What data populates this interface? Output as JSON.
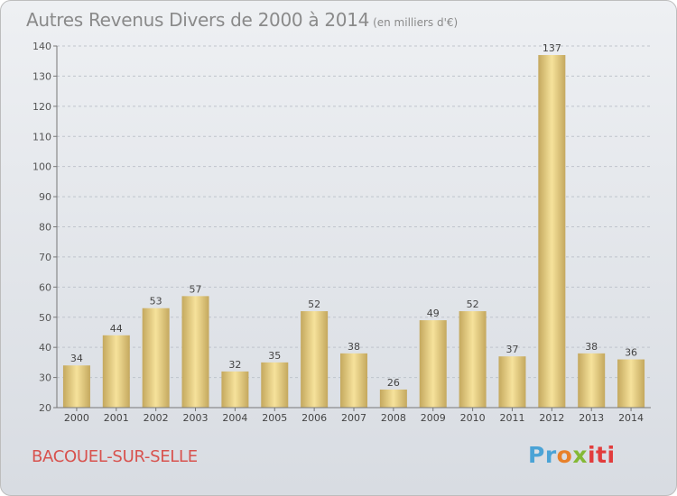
{
  "title": "Autres Revenus Divers de 2000 à 2014",
  "subtitle": "(en milliers d'€)",
  "commune": "BACOUEL-SUR-SELLE",
  "logo": {
    "part1": "Pr",
    "part2": "o",
    "part3": "x",
    "part4": "iti"
  },
  "colors": {
    "bar_light": "#f6e29b",
    "bar_dark": "#c4a85e",
    "title": "#8a8a8a",
    "commune": "#d8524e",
    "grid": "#bfc4cc"
  },
  "chart_data": {
    "type": "bar",
    "title": "Autres Revenus Divers de 2000 à 2014",
    "subtitle": "(en milliers d'€)",
    "categories": [
      "2000",
      "2001",
      "2002",
      "2003",
      "2004",
      "2005",
      "2006",
      "2007",
      "2008",
      "2009",
      "2010",
      "2011",
      "2012",
      "2013",
      "2014"
    ],
    "values": [
      34,
      44,
      53,
      57,
      32,
      35,
      52,
      38,
      26,
      49,
      52,
      37,
      137,
      38,
      36
    ],
    "ylim": [
      20,
      140
    ],
    "yticks": [
      20,
      30,
      40,
      50,
      60,
      70,
      80,
      90,
      100,
      110,
      120,
      130,
      140
    ],
    "grid": true,
    "data_labels": true
  }
}
